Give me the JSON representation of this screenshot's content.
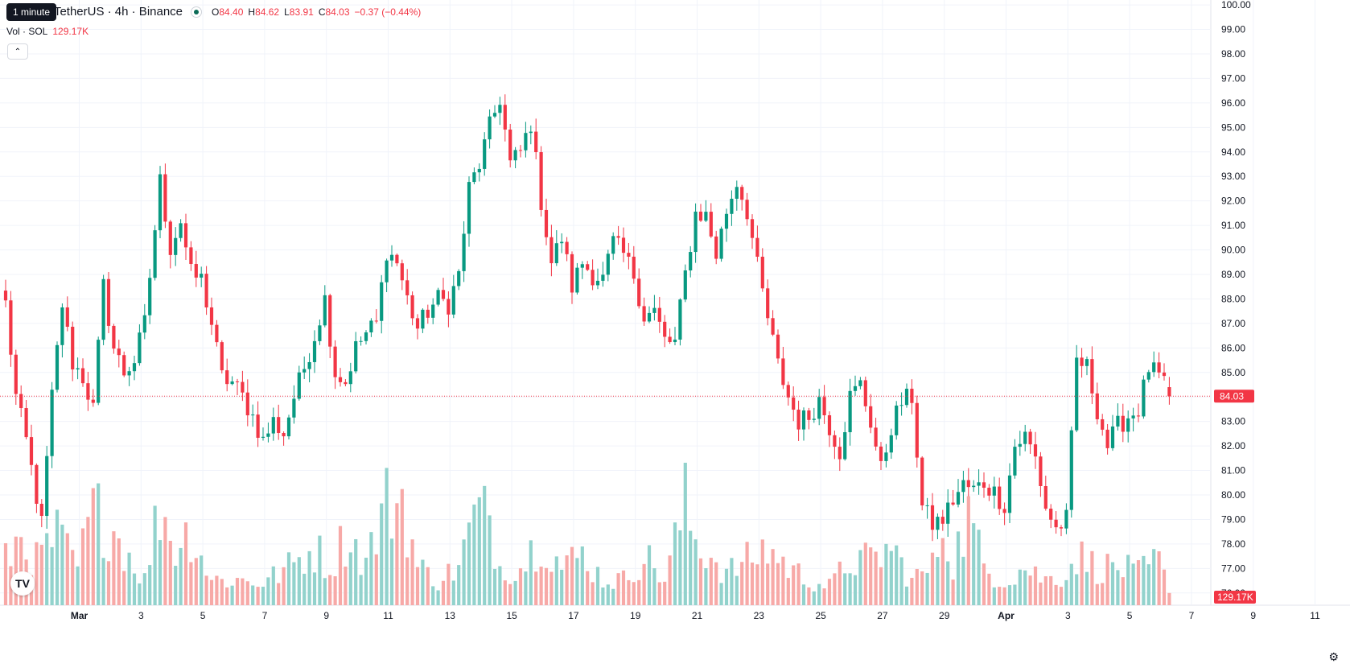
{
  "header": {
    "symbol": "Solana / TetherUS · 4h · Binance",
    "tooltip": "1 minute",
    "open_label": "O",
    "open": "84.40",
    "high_label": "H",
    "high": "84.62",
    "low_label": "L",
    "low": "83.91",
    "close_label": "C",
    "close": "84.03",
    "change": "−0.37 (−0.44%)"
  },
  "volume_legend": {
    "label": "Vol · SOL",
    "value": "129.17K"
  },
  "last_price_label": "84.03",
  "last_volume_label": "129.17K",
  "logo_text": "TV",
  "colors": {
    "up": "#089981",
    "down": "#f23645",
    "up_volume": "#92d2cc",
    "down_volume": "#f7a9a7",
    "grid": "#f0f3fa",
    "price_line": "#f23645"
  },
  "chart_data": {
    "type": "candlestick",
    "y_ticks": [
      "76.00",
      "77.00",
      "78.00",
      "79.00",
      "80.00",
      "81.00",
      "82.00",
      "83.00",
      "84.00",
      "85.00",
      "86.00",
      "87.00",
      "88.00",
      "89.00",
      "90.00",
      "91.00",
      "92.00",
      "93.00",
      "94.00",
      "95.00",
      "96.00",
      "97.00",
      "98.00",
      "99.00",
      "100.00"
    ],
    "ylim": [
      75.5,
      100.2
    ],
    "x_ticks": [
      {
        "label": "Mar",
        "bar": 14.3
      },
      {
        "label": "3",
        "bar": 26.3
      },
      {
        "label": "5",
        "bar": 38.3
      },
      {
        "label": "7",
        "bar": 50.3
      },
      {
        "label": "9",
        "bar": 62.3
      },
      {
        "label": "11",
        "bar": 74.3
      },
      {
        "label": "13",
        "bar": 86.3
      },
      {
        "label": "15",
        "bar": 98.3
      },
      {
        "label": "17",
        "bar": 110.3
      },
      {
        "label": "19",
        "bar": 122.3
      },
      {
        "label": "21",
        "bar": 134.3
      },
      {
        "label": "23",
        "bar": 146.3
      },
      {
        "label": "25",
        "bar": 158.3
      },
      {
        "label": "27",
        "bar": 170.3
      },
      {
        "label": "29",
        "bar": 182.3
      },
      {
        "label": "Apr",
        "bar": 194.3
      },
      {
        "label": "3",
        "bar": 206.3
      },
      {
        "label": "5",
        "bar": 218.3
      },
      {
        "label": "7",
        "bar": 230.3
      },
      {
        "label": "9",
        "bar": 242.3
      },
      {
        "label": "11",
        "bar": 254.3
      }
    ],
    "anchors": [
      [
        0,
        87.8
      ],
      [
        2,
        84.0
      ],
      [
        4,
        82.2
      ],
      [
        7,
        78.8
      ],
      [
        9,
        84.0
      ],
      [
        11,
        87.8
      ],
      [
        13,
        85.4
      ],
      [
        15,
        84.8
      ],
      [
        17,
        83.5
      ],
      [
        19,
        88.5
      ],
      [
        21,
        86.0
      ],
      [
        23,
        85.0
      ],
      [
        25,
        85.5
      ],
      [
        27,
        87.0
      ],
      [
        30,
        92.8
      ],
      [
        32,
        90.1
      ],
      [
        34,
        91.2
      ],
      [
        36,
        89.0
      ],
      [
        38,
        88.8
      ],
      [
        40,
        87.0
      ],
      [
        42,
        84.8
      ],
      [
        44,
        84.6
      ],
      [
        46,
        84.0
      ],
      [
        48,
        83.2
      ],
      [
        50,
        82.2
      ],
      [
        52,
        83.0
      ],
      [
        54,
        82.5
      ],
      [
        56,
        84.0
      ],
      [
        58,
        85.2
      ],
      [
        60,
        86.5
      ],
      [
        62,
        88.0
      ],
      [
        64,
        85.0
      ],
      [
        66,
        84.6
      ],
      [
        68,
        86.0
      ],
      [
        70,
        86.6
      ],
      [
        72,
        87.0
      ],
      [
        74,
        90.0
      ],
      [
        76,
        89.5
      ],
      [
        78,
        88.0
      ],
      [
        80,
        86.8
      ],
      [
        82,
        87.5
      ],
      [
        84,
        88.0
      ],
      [
        86,
        87.8
      ],
      [
        88,
        89.0
      ],
      [
        90,
        92.5
      ],
      [
        92,
        93.5
      ],
      [
        94,
        95.0
      ],
      [
        96,
        96.2
      ],
      [
        98,
        93.5
      ],
      [
        100,
        94.0
      ],
      [
        102,
        95.2
      ],
      [
        104,
        92.0
      ],
      [
        106,
        89.5
      ],
      [
        108,
        90.5
      ],
      [
        110,
        88.5
      ],
      [
        112,
        89.5
      ],
      [
        114,
        89.0
      ],
      [
        116,
        88.8
      ],
      [
        118,
        90.3
      ],
      [
        120,
        89.8
      ],
      [
        122,
        89.0
      ],
      [
        124,
        87.3
      ],
      [
        126,
        87.5
      ],
      [
        128,
        86.3
      ],
      [
        130,
        86.2
      ],
      [
        132,
        89.0
      ],
      [
        134,
        91.5
      ],
      [
        136,
        91.4
      ],
      [
        138,
        89.8
      ],
      [
        140,
        91.6
      ],
      [
        142,
        92.8
      ],
      [
        144,
        91.6
      ],
      [
        146,
        89.3
      ],
      [
        148,
        87.2
      ],
      [
        150,
        85.3
      ],
      [
        152,
        84.0
      ],
      [
        154,
        83.0
      ],
      [
        156,
        83.2
      ],
      [
        158,
        83.9
      ],
      [
        160,
        82.8
      ],
      [
        162,
        81.8
      ],
      [
        164,
        84.0
      ],
      [
        166,
        84.5
      ],
      [
        168,
        83.0
      ],
      [
        170,
        81.0
      ],
      [
        172,
        82.8
      ],
      [
        174,
        83.8
      ],
      [
        176,
        84.0
      ],
      [
        178,
        79.5
      ],
      [
        180,
        78.8
      ],
      [
        182,
        79.0
      ],
      [
        184,
        79.8
      ],
      [
        186,
        80.4
      ],
      [
        188,
        80.2
      ],
      [
        190,
        80.5
      ],
      [
        192,
        80.1
      ],
      [
        194,
        79.6
      ],
      [
        196,
        82.0
      ],
      [
        198,
        82.4
      ],
      [
        200,
        81.5
      ],
      [
        202,
        79.5
      ],
      [
        204,
        78.6
      ],
      [
        206,
        79.0
      ],
      [
        208,
        85.5
      ],
      [
        210,
        85.2
      ],
      [
        212,
        83.5
      ],
      [
        214,
        82.0
      ],
      [
        216,
        82.8
      ],
      [
        218,
        83.2
      ],
      [
        220,
        83.5
      ],
      [
        222,
        85.2
      ],
      [
        224,
        84.8
      ],
      [
        226,
        84.03
      ]
    ],
    "candle_count": 227,
    "volume": "relative volume per candle (0–1), shown as bottom histogram",
    "volume_peaks": [
      [
        0,
        0.35
      ],
      [
        3,
        0.55
      ],
      [
        6,
        0.35
      ],
      [
        10,
        0.55
      ],
      [
        14,
        0.3
      ],
      [
        17,
        0.75
      ],
      [
        21,
        0.6
      ],
      [
        27,
        0.2
      ],
      [
        30,
        0.8
      ],
      [
        33,
        0.45
      ],
      [
        36,
        0.6
      ],
      [
        40,
        0.2
      ],
      [
        45,
        0.2
      ],
      [
        50,
        0.18
      ],
      [
        55,
        0.3
      ],
      [
        60,
        0.45
      ],
      [
        63,
        0.3
      ],
      [
        66,
        0.55
      ],
      [
        70,
        0.35
      ],
      [
        74,
        0.8
      ],
      [
        77,
        0.85
      ],
      [
        80,
        0.3
      ],
      [
        84,
        0.2
      ],
      [
        88,
        0.3
      ],
      [
        91,
        0.7
      ],
      [
        94,
        0.7
      ],
      [
        96,
        0.3
      ],
      [
        100,
        0.3
      ],
      [
        104,
        0.55
      ],
      [
        108,
        0.3
      ],
      [
        112,
        0.4
      ],
      [
        116,
        0.2
      ],
      [
        120,
        0.2
      ],
      [
        124,
        0.4
      ],
      [
        128,
        0.2
      ],
      [
        132,
        0.8
      ],
      [
        134,
        0.5
      ],
      [
        137,
        0.4
      ],
      [
        140,
        0.25
      ],
      [
        144,
        0.35
      ],
      [
        148,
        0.45
      ],
      [
        152,
        0.3
      ],
      [
        156,
        0.2
      ],
      [
        160,
        0.15
      ],
      [
        164,
        0.35
      ],
      [
        168,
        0.35
      ],
      [
        172,
        0.45
      ],
      [
        176,
        0.2
      ],
      [
        180,
        0.3
      ],
      [
        182,
        0.65
      ],
      [
        184,
        0.35
      ],
      [
        187,
        0.7
      ],
      [
        190,
        0.3
      ],
      [
        194,
        0.2
      ],
      [
        198,
        0.3
      ],
      [
        202,
        0.2
      ],
      [
        206,
        0.25
      ],
      [
        208,
        0.4
      ],
      [
        212,
        0.3
      ],
      [
        216,
        0.3
      ],
      [
        220,
        0.25
      ],
      [
        224,
        0.35
      ],
      [
        226,
        0.1
      ]
    ]
  }
}
